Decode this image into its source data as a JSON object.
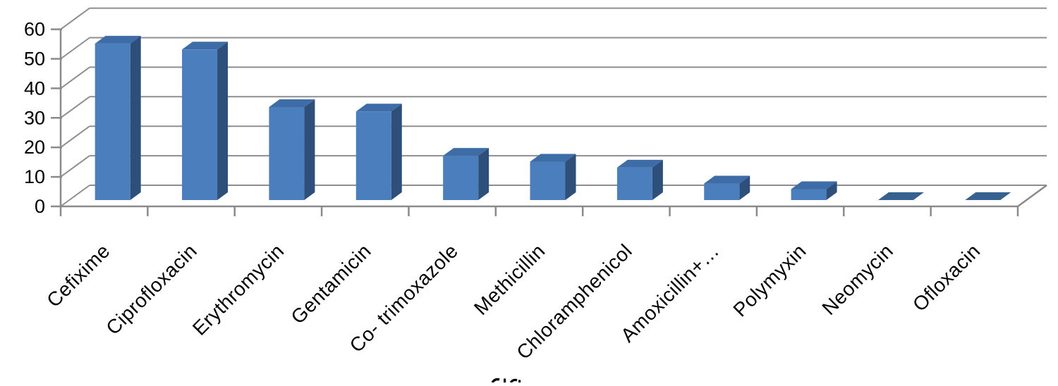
{
  "chart_data": {
    "type": "bar",
    "style": "3d-column",
    "title": "",
    "xlabel": "",
    "ylabel": "",
    "categories": [
      "Cefixime",
      "Ciprofloxacin",
      "Erythromycin",
      "Gentamicin",
      "Co- trimoxazole",
      "Methicillin",
      "Chloramphenicol",
      "Amoxicillin+…",
      "Polymyxin",
      "Neomycin",
      "Ofloxacin"
    ],
    "values": [
      53,
      51,
      31.5,
      30,
      15,
      13,
      11,
      5.6,
      3.7,
      0,
      0
    ],
    "ylim": [
      0,
      60
    ],
    "ytick_step": 10,
    "yticks": [
      0,
      10,
      20,
      30,
      40,
      50,
      60
    ],
    "grid": true,
    "legend": "none",
    "colors": {
      "bar_front": "#4a7ebc",
      "bar_top": "#3d6ca6",
      "bar_side": "#2d4f79",
      "zero_tile": "#36618f",
      "gridline": "#8e8e8e",
      "axis": "#8a8a8a",
      "text": "#000000",
      "background": "#ffffff"
    },
    "artifacts": {
      "clipped_text_fragment": "tops of letters of a further label row cut off at the bottom edge of the screenshot"
    }
  }
}
